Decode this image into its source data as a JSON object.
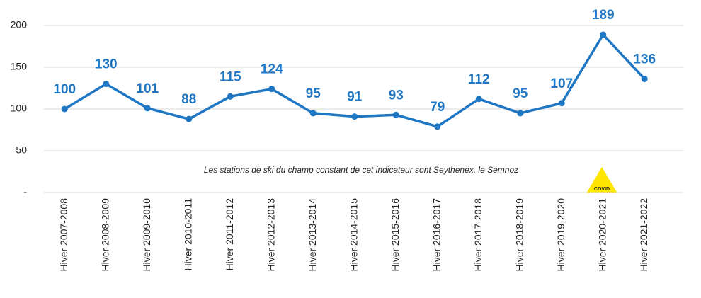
{
  "chart_data": {
    "type": "line",
    "categories": [
      "Hiver 2007-2008",
      "Hiver 2008-2009",
      "Hiver 2009-2010",
      "Hiver 2010-2011",
      "Hiver 2011-2012",
      "Hiver 2012-2013",
      "Hiver 2013-2014",
      "Hiver 2014-2015",
      "Hiver 2015-2016",
      "Hiver 2016-2017",
      "Hiver 2017-2018",
      "Hiver 2018-2019",
      "Hiver 2019-2020",
      "Hiver 2020-2021",
      "Hiver 2021-2022"
    ],
    "values": [
      100,
      130,
      101,
      88,
      115,
      124,
      95,
      91,
      93,
      79,
      112,
      95,
      107,
      189,
      136
    ],
    "color": "#1f77c4",
    "ylim": [
      0,
      200
    ],
    "yticks": [
      {
        "value": 0,
        "label": "-"
      },
      50,
      100,
      150,
      200
    ],
    "grid": true,
    "annotations": [
      "Les stations de ski du champ constant de cet indicateur sont Seythenex, le Semnoz",
      "COVID"
    ]
  }
}
